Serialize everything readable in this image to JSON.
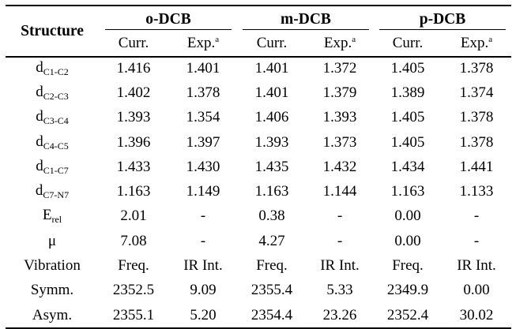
{
  "header": {
    "structure_label": "Structure",
    "groups": [
      "o-DCB",
      "m-DCB",
      "p-DCB"
    ],
    "sub_curr": "Curr.",
    "sub_exp": "Exp.",
    "sub_exp_sup": "a"
  },
  "rows": [
    {
      "label_main": "d",
      "label_sub": "C1-C2",
      "label_sup": "",
      "values": [
        "1.416",
        "1.401",
        "1.401",
        "1.372",
        "1.405",
        "1.378"
      ]
    },
    {
      "label_main": "d",
      "label_sub": "C2-C3",
      "label_sup": "",
      "values": [
        "1.402",
        "1.378",
        "1.401",
        "1.379",
        "1.389",
        "1.374"
      ]
    },
    {
      "label_main": "d",
      "label_sub": "C3-C4",
      "label_sup": "",
      "values": [
        "1.393",
        "1.354",
        "1.406",
        "1.393",
        "1.405",
        "1.378"
      ]
    },
    {
      "label_main": "d",
      "label_sub": "C4-C5",
      "label_sup": "",
      "values": [
        "1.396",
        "1.397",
        "1.393",
        "1.373",
        "1.405",
        "1.378"
      ]
    },
    {
      "label_main": "d",
      "label_sub": "C1-C7",
      "label_sup": "",
      "values": [
        "1.433",
        "1.430",
        "1.435",
        "1.432",
        "1.434",
        "1.441"
      ]
    },
    {
      "label_main": "d",
      "label_sub": "C7-N7",
      "label_sup": "",
      "values": [
        "1.163",
        "1.149",
        "1.163",
        "1.144",
        "1.163",
        "1.133"
      ]
    },
    {
      "label_main": "E",
      "label_sub": "rel",
      "label_sup": "",
      "values": [
        "2.01",
        "-",
        "0.38",
        "-",
        "0.00",
        "-"
      ]
    },
    {
      "label_main": "μ",
      "label_sub": "",
      "label_sup": "",
      "values": [
        "7.08",
        "-",
        "4.27",
        "-",
        "0.00",
        "-"
      ]
    },
    {
      "label_main": "Vibration",
      "label_sub": "",
      "label_sup": "",
      "values": [
        "Freq.",
        "IR Int.",
        "Freq.",
        "IR Int.",
        "Freq.",
        "IR Int."
      ]
    },
    {
      "label_main": "Symm.",
      "label_sub": "",
      "label_sup": "",
      "values": [
        "2352.5",
        "9.09",
        "2355.4",
        "5.33",
        "2349.9",
        "0.00"
      ]
    },
    {
      "label_main": "Asym.",
      "label_sub": "",
      "label_sup": "",
      "values": [
        "2355.1",
        "5.20",
        "2354.4",
        "23.26",
        "2352.4",
        "30.02"
      ]
    }
  ]
}
